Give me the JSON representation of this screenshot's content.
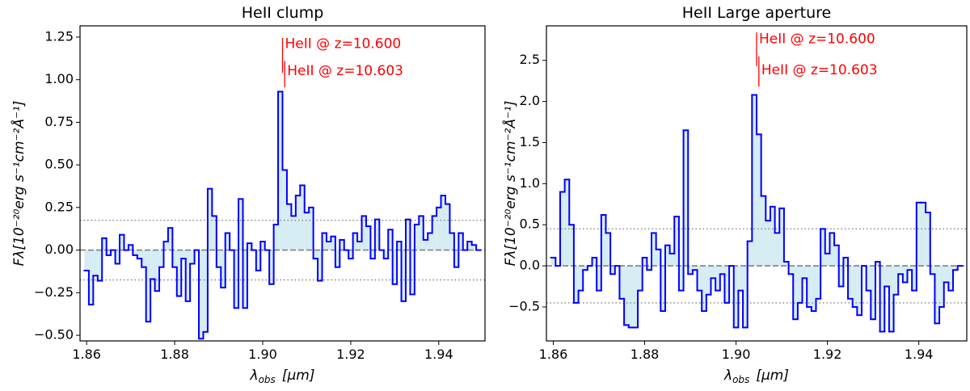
{
  "chart_data": [
    {
      "type": "step",
      "title": "HeII clump",
      "xlabel": {
        "symbol": "λ",
        "subscript": "obs",
        "unit": "[μm]"
      },
      "ylabel": "Fλ[10⁻²⁰erg s⁻¹cm⁻²Å⁻¹]",
      "x": [
        1.86,
        1.861,
        1.862,
        1.863,
        1.864,
        1.865,
        1.866,
        1.867,
        1.868,
        1.869,
        1.87,
        1.871,
        1.872,
        1.873,
        1.874,
        1.875,
        1.876,
        1.877,
        1.878,
        1.879,
        1.88,
        1.881,
        1.882,
        1.883,
        1.884,
        1.885,
        1.886,
        1.887,
        1.888,
        1.889,
        1.89,
        1.891,
        1.892,
        1.893,
        1.894,
        1.895,
        1.896,
        1.897,
        1.898,
        1.899,
        1.9,
        1.901,
        1.902,
        1.903,
        1.904,
        1.905,
        1.906,
        1.907,
        1.908,
        1.909,
        1.91,
        1.911,
        1.912,
        1.913,
        1.914,
        1.915,
        1.916,
        1.917,
        1.918,
        1.919,
        1.92,
        1.921,
        1.922,
        1.923,
        1.924,
        1.925,
        1.926,
        1.927,
        1.928,
        1.929,
        1.93,
        1.931,
        1.932,
        1.933,
        1.934,
        1.935,
        1.936,
        1.937,
        1.938,
        1.939,
        1.94,
        1.941,
        1.942,
        1.943,
        1.944,
        1.945,
        1.946,
        1.947,
        1.948,
        1.949
      ],
      "values": [
        -0.12,
        -0.32,
        -0.15,
        -0.18,
        0.07,
        -0.03,
        0.0,
        -0.08,
        0.09,
        0.0,
        0.03,
        -0.03,
        -0.05,
        -0.1,
        -0.42,
        -0.17,
        -0.24,
        -0.1,
        0.05,
        0.13,
        -0.1,
        -0.27,
        -0.05,
        -0.3,
        -0.08,
        0.0,
        -0.52,
        -0.48,
        0.36,
        0.2,
        -0.1,
        -0.22,
        0.1,
        0.0,
        -0.34,
        0.3,
        -0.34,
        0.04,
        0.0,
        -0.12,
        0.05,
        0.0,
        -0.2,
        0.15,
        0.93,
        0.47,
        0.27,
        0.2,
        0.32,
        0.38,
        0.22,
        0.25,
        -0.05,
        -0.18,
        0.1,
        0.05,
        0.08,
        -0.1,
        0.06,
        0.0,
        -0.05,
        0.1,
        0.05,
        0.2,
        0.14,
        -0.05,
        0.18,
        0.0,
        -0.05,
        0.12,
        -0.2,
        0.05,
        -0.3,
        0.18,
        -0.26,
        0.15,
        0.2,
        0.06,
        0.1,
        0.2,
        0.25,
        0.32,
        0.27,
        0.1,
        -0.1,
        0.1,
        0.0,
        0.05,
        0.03,
        0.0
      ],
      "line_color": "#0000ff",
      "fill_color": "#d6ecf3",
      "hlines": [
        {
          "y": 0,
          "style": "dashed"
        },
        {
          "y": 0.175,
          "style": "dotted"
        },
        {
          "y": -0.175,
          "style": "dotted"
        }
      ],
      "annotations": [
        {
          "x": 1.9045,
          "y0": 1.04,
          "y1": 1.245,
          "text_y": 1.21,
          "label": "HeII @ z=10.600"
        },
        {
          "x": 1.905,
          "y0": 0.955,
          "y1": 1.11,
          "text_y": 1.05,
          "label": "HeII @ z=10.603"
        }
      ],
      "annotation_color": "#ff0000",
      "xlim": [
        1.8585,
        1.9505
      ],
      "xticks": [
        1.86,
        1.88,
        {
          "value": 1.9,
          "label": "1.90"
        },
        1.92,
        1.94
      ],
      "ylim": [
        -0.533,
        1.316
      ],
      "yticks": [
        {
          "value": -0.5,
          "label": "−0.50"
        },
        {
          "value": -0.25,
          "label": "−0.25"
        },
        {
          "value": 0,
          "label": "0.00"
        },
        0.25,
        {
          "value": 0.5,
          "label": "0.50"
        },
        0.75,
        {
          "value": 1,
          "label": "1.00"
        },
        1.25
      ]
    },
    {
      "type": "step",
      "title": "HeII Large aperture",
      "xlabel": {
        "symbol": "λ",
        "subscript": "obs",
        "unit": "[μm]"
      },
      "ylabel": "Fλ[10⁻²⁰erg s⁻¹cm⁻²Å⁻¹]",
      "x": [
        1.86,
        1.861,
        1.862,
        1.863,
        1.864,
        1.865,
        1.866,
        1.867,
        1.868,
        1.869,
        1.87,
        1.871,
        1.872,
        1.873,
        1.874,
        1.875,
        1.876,
        1.877,
        1.878,
        1.879,
        1.88,
        1.881,
        1.882,
        1.883,
        1.884,
        1.885,
        1.886,
        1.887,
        1.888,
        1.889,
        1.89,
        1.891,
        1.892,
        1.893,
        1.894,
        1.895,
        1.896,
        1.897,
        1.898,
        1.899,
        1.9,
        1.901,
        1.902,
        1.903,
        1.904,
        1.905,
        1.906,
        1.907,
        1.908,
        1.909,
        1.91,
        1.911,
        1.912,
        1.913,
        1.914,
        1.915,
        1.916,
        1.917,
        1.918,
        1.919,
        1.92,
        1.921,
        1.922,
        1.923,
        1.924,
        1.925,
        1.926,
        1.927,
        1.928,
        1.929,
        1.93,
        1.931,
        1.932,
        1.933,
        1.934,
        1.935,
        1.936,
        1.937,
        1.938,
        1.939,
        1.94,
        1.941,
        1.942,
        1.943,
        1.944,
        1.945,
        1.946,
        1.947,
        1.948,
        1.949
      ],
      "values": [
        0.1,
        0.0,
        0.9,
        1.05,
        0.5,
        -0.45,
        -0.3,
        -0.05,
        0.0,
        0.1,
        -0.3,
        0.62,
        0.4,
        -0.1,
        0.0,
        -0.4,
        -0.72,
        -0.75,
        -0.75,
        -0.3,
        0.1,
        -0.05,
        0.4,
        0.2,
        -0.55,
        0.25,
        0.15,
        0.6,
        -0.3,
        1.65,
        -0.1,
        -0.05,
        -0.3,
        -0.55,
        -0.35,
        -0.15,
        -0.3,
        -0.1,
        -0.45,
        0.0,
        -0.75,
        -0.3,
        -0.75,
        0.3,
        2.08,
        1.6,
        0.85,
        0.55,
        0.72,
        0.4,
        0.7,
        0.05,
        -0.1,
        -0.65,
        -0.45,
        -0.15,
        -0.5,
        -0.55,
        -0.4,
        0.45,
        0.15,
        0.4,
        0.25,
        -0.25,
        0.1,
        -0.4,
        -0.5,
        -0.6,
        0.0,
        -0.3,
        -0.65,
        0.05,
        -0.8,
        -0.25,
        -0.8,
        -0.35,
        -0.1,
        -0.2,
        -0.05,
        -0.3,
        0.77,
        0.77,
        0.65,
        -0.1,
        -0.7,
        -0.5,
        -0.2,
        -0.3,
        -0.05,
        0.0
      ],
      "line_color": "#0000ff",
      "fill_color": "#d6ecf3",
      "hlines": [
        {
          "y": 0,
          "style": "dashed"
        },
        {
          "y": 0.45,
          "style": "dotted"
        },
        {
          "y": -0.45,
          "style": "dotted"
        }
      ],
      "annotations": [
        {
          "x": 1.9045,
          "y0": 2.43,
          "y1": 2.84,
          "text_y": 2.76,
          "label": "HeII @ z=10.600"
        },
        {
          "x": 1.905,
          "y0": 2.18,
          "y1": 2.55,
          "text_y": 2.38,
          "label": "HeII @ z=10.603"
        }
      ],
      "annotation_color": "#ff0000",
      "xlim": [
        1.8585,
        1.9505
      ],
      "xticks": [
        1.86,
        1.88,
        {
          "value": 1.9,
          "label": "1.90"
        },
        1.92,
        1.94
      ],
      "ylim": [
        -0.913,
        2.92
      ],
      "yticks": [
        {
          "value": -0.5,
          "label": "−0.5"
        },
        {
          "value": 0,
          "label": "0.0"
        },
        0.5,
        {
          "value": 1,
          "label": "1.0"
        },
        1.5,
        {
          "value": 2,
          "label": "2.0"
        },
        2.5
      ]
    }
  ]
}
